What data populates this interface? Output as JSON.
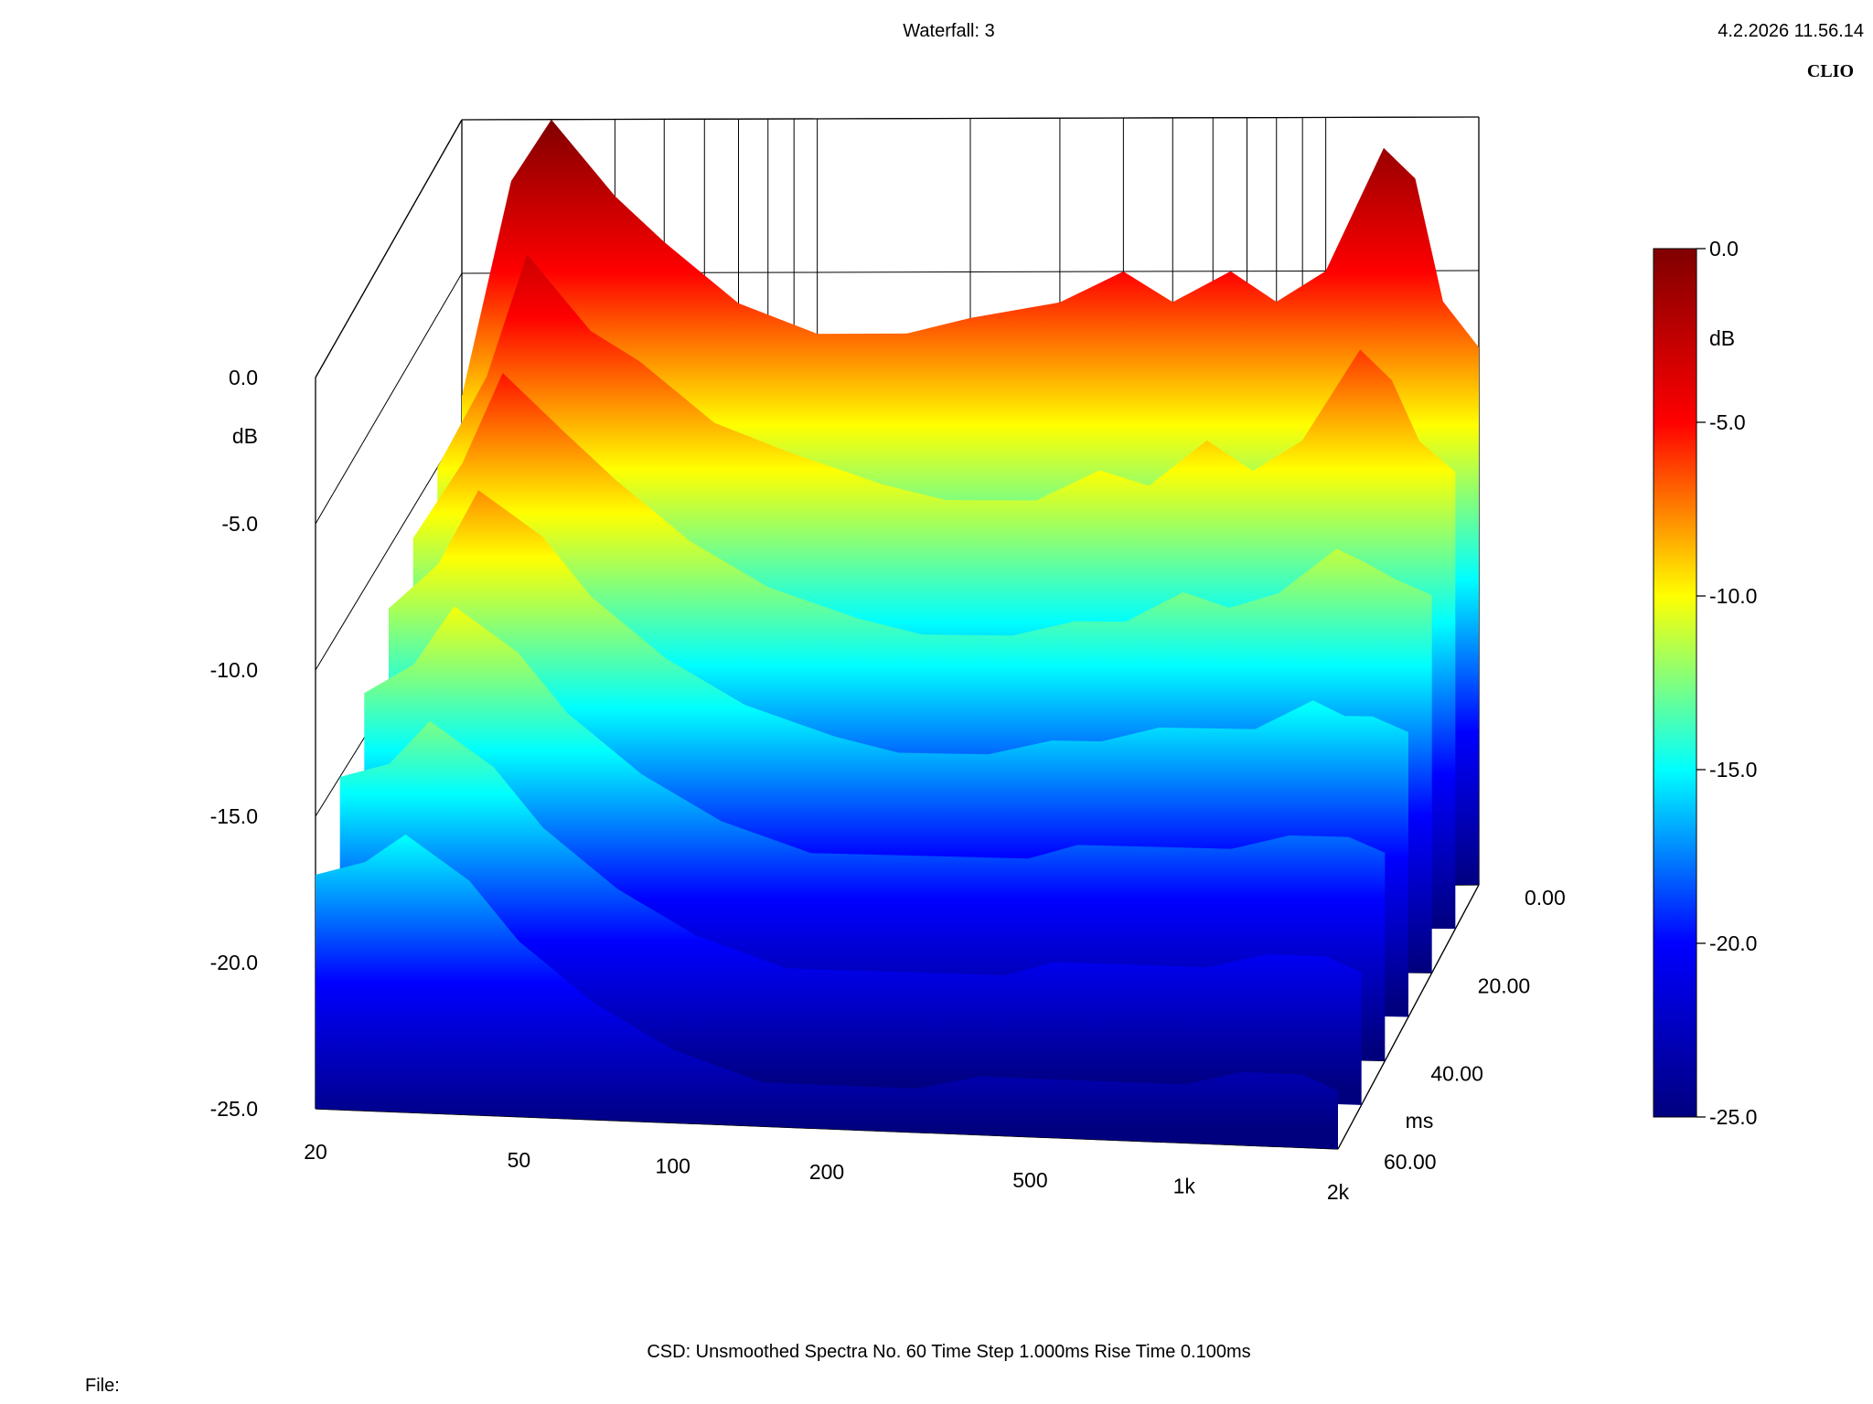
{
  "header": {
    "title": "Waterfall: 3",
    "timestamp": "4.2.2026 11.56.14",
    "brand": "CLIO"
  },
  "footer": {
    "info": "CSD:   Unsmoothed   Spectra No. 60   Time Step 1.000ms   Rise Time 0.100ms",
    "file_label": "File:"
  },
  "chart_data": {
    "type": "waterfall",
    "x_axis": {
      "scale": "log",
      "range": [
        20,
        2000
      ],
      "tick_values": [
        20,
        50,
        100,
        200,
        500,
        1000,
        2000
      ],
      "tick_labels": [
        "20",
        "50",
        "100",
        "200",
        "500",
        "1k",
        "2k"
      ]
    },
    "z_axis": {
      "unit": "ms",
      "range": [
        0,
        60
      ],
      "tick_values": [
        0,
        20,
        40,
        60
      ],
      "tick_labels": [
        "0.00",
        "20.00",
        "40.00",
        "60.00"
      ]
    },
    "y_axis": {
      "unit": "dB",
      "range": [
        -25,
        0
      ],
      "tick_values": [
        0,
        -5,
        -10,
        -15,
        -20,
        -25
      ],
      "tick_labels": [
        "0.0",
        "-5.0",
        "-10.0",
        "-15.0",
        "-20.0",
        "-25.0"
      ]
    },
    "colorbar": {
      "unit": "dB",
      "range": [
        -25,
        0
      ],
      "tick_labels": [
        "0.0",
        "-5.0",
        "-10.0",
        "-15.0",
        "-20.0",
        "-25.0"
      ],
      "colors": [
        "#00007f",
        "#0000ff",
        "#00ffff",
        "#ffff00",
        "#ff0000",
        "#7f0000"
      ]
    },
    "series": [
      {
        "time_ms": 0,
        "freq_hz": [
          20,
          25,
          30,
          40,
          50,
          70,
          100,
          150,
          200,
          300,
          400,
          500,
          650,
          800,
          1000,
          1300,
          1500,
          1700,
          2000
        ],
        "db": [
          -9.0,
          -2.0,
          0.0,
          -2.5,
          -4.0,
          -6.0,
          -7.0,
          -7.0,
          -6.5,
          -6.0,
          -5.0,
          -6.0,
          -5.0,
          -6.0,
          -5.0,
          -1.0,
          -2.0,
          -6.0,
          -7.5
        ]
      },
      {
        "time_ms": 10,
        "freq_hz": [
          20,
          25,
          30,
          40,
          50,
          70,
          100,
          150,
          200,
          300,
          400,
          500,
          650,
          800,
          1000,
          1300,
          1500,
          1700,
          2000
        ],
        "db": [
          -10.0,
          -7.0,
          -3.0,
          -5.5,
          -6.5,
          -8.5,
          -9.5,
          -10.5,
          -11.0,
          -11.0,
          -10.0,
          -10.5,
          -9.0,
          -10.0,
          -9.0,
          -6.0,
          -7.0,
          -9.0,
          -10.0
        ]
      },
      {
        "time_ms": 20,
        "freq_hz": [
          20,
          25,
          30,
          40,
          50,
          70,
          100,
          150,
          200,
          300,
          400,
          500,
          650,
          800,
          1000,
          1300,
          1500,
          1700,
          2000
        ],
        "db": [
          -11.0,
          -8.5,
          -5.5,
          -7.5,
          -9.0,
          -11.0,
          -12.5,
          -13.5,
          -14.0,
          -14.0,
          -13.5,
          -13.5,
          -12.5,
          -13.0,
          -12.5,
          -11.0,
          -11.5,
          -12.0,
          -12.5
        ]
      },
      {
        "time_ms": 30,
        "freq_hz": [
          20,
          25,
          30,
          40,
          50,
          70,
          100,
          150,
          200,
          300,
          400,
          500,
          650,
          800,
          1000,
          1300,
          1500,
          1700,
          2000
        ],
        "db": [
          -12.0,
          -10.5,
          -8.0,
          -9.5,
          -11.5,
          -13.5,
          -15.0,
          -16.0,
          -16.5,
          -16.5,
          -16.0,
          -16.0,
          -15.5,
          -15.5,
          -15.5,
          -14.5,
          -15.0,
          -15.0,
          -15.5
        ]
      },
      {
        "time_ms": 40,
        "freq_hz": [
          20,
          25,
          30,
          40,
          50,
          70,
          100,
          150,
          200,
          300,
          400,
          500,
          650,
          800,
          1000,
          1300,
          1500,
          1700,
          2000
        ],
        "db": [
          -13.5,
          -12.5,
          -10.5,
          -12.0,
          -14.0,
          -16.0,
          -17.5,
          -18.5,
          -18.5,
          -18.5,
          -18.5,
          -18.0,
          -18.0,
          -18.0,
          -18.0,
          -17.5,
          -17.5,
          -17.5,
          -18.0
        ]
      },
      {
        "time_ms": 50,
        "freq_hz": [
          20,
          25,
          30,
          40,
          50,
          70,
          100,
          150,
          200,
          300,
          400,
          500,
          650,
          800,
          1000,
          1300,
          1500,
          1700,
          2000
        ],
        "db": [
          -15.0,
          -14.5,
          -13.0,
          -14.5,
          -16.5,
          -18.5,
          -20.0,
          -21.0,
          -21.0,
          -21.0,
          -21.0,
          -20.5,
          -20.5,
          -20.5,
          -20.5,
          -20.0,
          -20.0,
          -20.0,
          -20.5
        ]
      },
      {
        "time_ms": 60,
        "freq_hz": [
          20,
          25,
          30,
          40,
          50,
          70,
          100,
          150,
          200,
          300,
          400,
          500,
          650,
          800,
          1000,
          1300,
          1500,
          1700,
          2000
        ],
        "db": [
          -17.0,
          -16.5,
          -15.5,
          -17.0,
          -19.0,
          -21.0,
          -22.5,
          -23.5,
          -23.5,
          -23.5,
          -23.0,
          -23.0,
          -23.0,
          -23.0,
          -23.0,
          -22.5,
          -22.5,
          -22.5,
          -23.0
        ]
      }
    ]
  }
}
